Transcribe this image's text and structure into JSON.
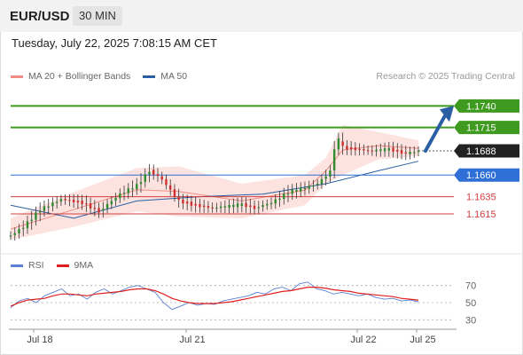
{
  "header": {
    "symbol": "EUR/USD",
    "timeframe": "30 MIN"
  },
  "datetime": "Tuesday, July 22, 2025 7:08:15 AM CET",
  "credit": "Research © 2025 Trading Central",
  "legend": [
    {
      "label": "MA 20 + Bollinger Bands",
      "color": "#f08c84"
    },
    {
      "label": "MA 50",
      "color": "#2a5fa3"
    }
  ],
  "rsi_legend": [
    {
      "label": "RSI",
      "color": "#5a7fd4"
    },
    {
      "label": "9MA",
      "color": "#e02020"
    }
  ],
  "chart_data": [
    {
      "type": "candlestick",
      "y_range": [
        1.1575,
        1.1765
      ],
      "x_labels": [
        "Jul 18",
        "Jul 21",
        "Jul 22",
        "Jul 25"
      ],
      "levels": [
        {
          "label": "1.1740",
          "value": 1.174,
          "color": "#3e9b1f"
        },
        {
          "label": "1.1715",
          "value": 1.1715,
          "color": "#3e9b1f"
        },
        {
          "label": "1.1688",
          "value": 1.1688,
          "color": "#222222"
        },
        {
          "label": "1.1660",
          "value": 1.166,
          "color": "#2f6fd6"
        },
        {
          "label": "1.1635",
          "value": 1.1635,
          "color": "#d04040"
        },
        {
          "label": "1.1615",
          "value": 1.1615,
          "color": "#d04040"
        }
      ],
      "price_path": [
        [
          0,
          1.159
        ],
        [
          6,
          1.16
        ],
        [
          14,
          1.162
        ],
        [
          24,
          1.1632
        ],
        [
          34,
          1.1628
        ],
        [
          42,
          1.1618
        ],
        [
          52,
          1.1638
        ],
        [
          60,
          1.1648
        ],
        [
          66,
          1.1665
        ],
        [
          72,
          1.1655
        ],
        [
          80,
          1.163
        ],
        [
          88,
          1.1625
        ],
        [
          96,
          1.1622
        ],
        [
          104,
          1.1624
        ],
        [
          110,
          1.1626
        ],
        [
          116,
          1.1622
        ],
        [
          124,
          1.1628
        ],
        [
          132,
          1.164
        ],
        [
          140,
          1.1645
        ],
        [
          146,
          1.165
        ],
        [
          152,
          1.1664
        ],
        [
          155,
          1.1705
        ],
        [
          158,
          1.1692
        ],
        [
          164,
          1.169
        ],
        [
          172,
          1.1688
        ],
        [
          180,
          1.169
        ],
        [
          188,
          1.1685
        ],
        [
          194,
          1.1688
        ]
      ],
      "ma50": [
        [
          0,
          1.1625
        ],
        [
          30,
          1.161
        ],
        [
          60,
          1.163
        ],
        [
          90,
          1.1635
        ],
        [
          120,
          1.1638
        ],
        [
          150,
          1.165
        ],
        [
          175,
          1.1665
        ],
        [
          194,
          1.1676
        ]
      ],
      "bollinger": {
        "upper": [
          [
            0,
            1.161
          ],
          [
            30,
            1.164
          ],
          [
            60,
            1.1668
          ],
          [
            80,
            1.167
          ],
          [
            110,
            1.165
          ],
          [
            140,
            1.166
          ],
          [
            150,
            1.168
          ],
          [
            158,
            1.1718
          ],
          [
            175,
            1.171
          ],
          [
            194,
            1.17
          ]
        ],
        "lower": [
          [
            0,
            1.1585
          ],
          [
            30,
            1.16
          ],
          [
            60,
            1.1618
          ],
          [
            80,
            1.1612
          ],
          [
            110,
            1.161
          ],
          [
            140,
            1.1625
          ],
          [
            150,
            1.165
          ],
          [
            158,
            1.166
          ],
          [
            175,
            1.1678
          ],
          [
            194,
            1.1682
          ]
        ]
      },
      "target_arrow": {
        "from": [
          194,
          1.1688
        ],
        "to": [
          220,
          1.1738
        ]
      }
    },
    {
      "type": "line",
      "title": "RSI",
      "y_range": [
        20,
        80
      ],
      "y_ticks": [
        30,
        50,
        70
      ],
      "series": [
        {
          "name": "RSI",
          "color": "#5a7fd4",
          "values": [
            44,
            52,
            55,
            50,
            58,
            62,
            66,
            58,
            60,
            54,
            62,
            66,
            60,
            64,
            68,
            70,
            66,
            62,
            50,
            42,
            46,
            50,
            47,
            49,
            48,
            52,
            54,
            56,
            58,
            62,
            60,
            66,
            68,
            64,
            72,
            74,
            66,
            64,
            60,
            62,
            60,
            58,
            60,
            56,
            54,
            55,
            52,
            53,
            51
          ]
        },
        {
          "name": "9MA",
          "color": "#e02020",
          "values": [
            46,
            50,
            53,
            54,
            55,
            58,
            60,
            60,
            59,
            58,
            60,
            61,
            62,
            63,
            65,
            66,
            66,
            64,
            60,
            55,
            52,
            50,
            49,
            49,
            49,
            50,
            51,
            53,
            55,
            57,
            59,
            61,
            63,
            64,
            66,
            68,
            68,
            67,
            65,
            64,
            63,
            61,
            60,
            59,
            58,
            57,
            55,
            54,
            53
          ]
        }
      ]
    }
  ]
}
